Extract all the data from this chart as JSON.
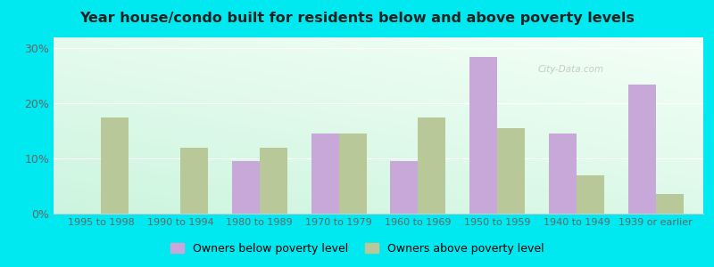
{
  "title": "Year house/condo built for residents below and above poverty levels",
  "categories": [
    "1995 to 1998",
    "1990 to 1994",
    "1980 to 1989",
    "1970 to 1979",
    "1960 to 1969",
    "1950 to 1959",
    "1940 to 1949",
    "1939 or earlier"
  ],
  "below_poverty": [
    0,
    0,
    9.5,
    14.5,
    9.5,
    28.5,
    14.5,
    23.5
  ],
  "above_poverty": [
    17.5,
    12.0,
    12.0,
    14.5,
    17.5,
    15.5,
    7.0,
    3.5
  ],
  "below_color": "#c8a8d8",
  "above_color": "#b8c898",
  "bg_top_color": "#e8f8ee",
  "bg_bottom_color": "#c8edd8",
  "outer_background": "#00e8f0",
  "ylim": [
    0,
    32
  ],
  "yticks": [
    0,
    10,
    20,
    30
  ],
  "legend_below_label": "Owners below poverty level",
  "legend_above_label": "Owners above poverty level",
  "bar_width": 0.35,
  "figsize": [
    8.0,
    3.0
  ],
  "dpi": 100
}
